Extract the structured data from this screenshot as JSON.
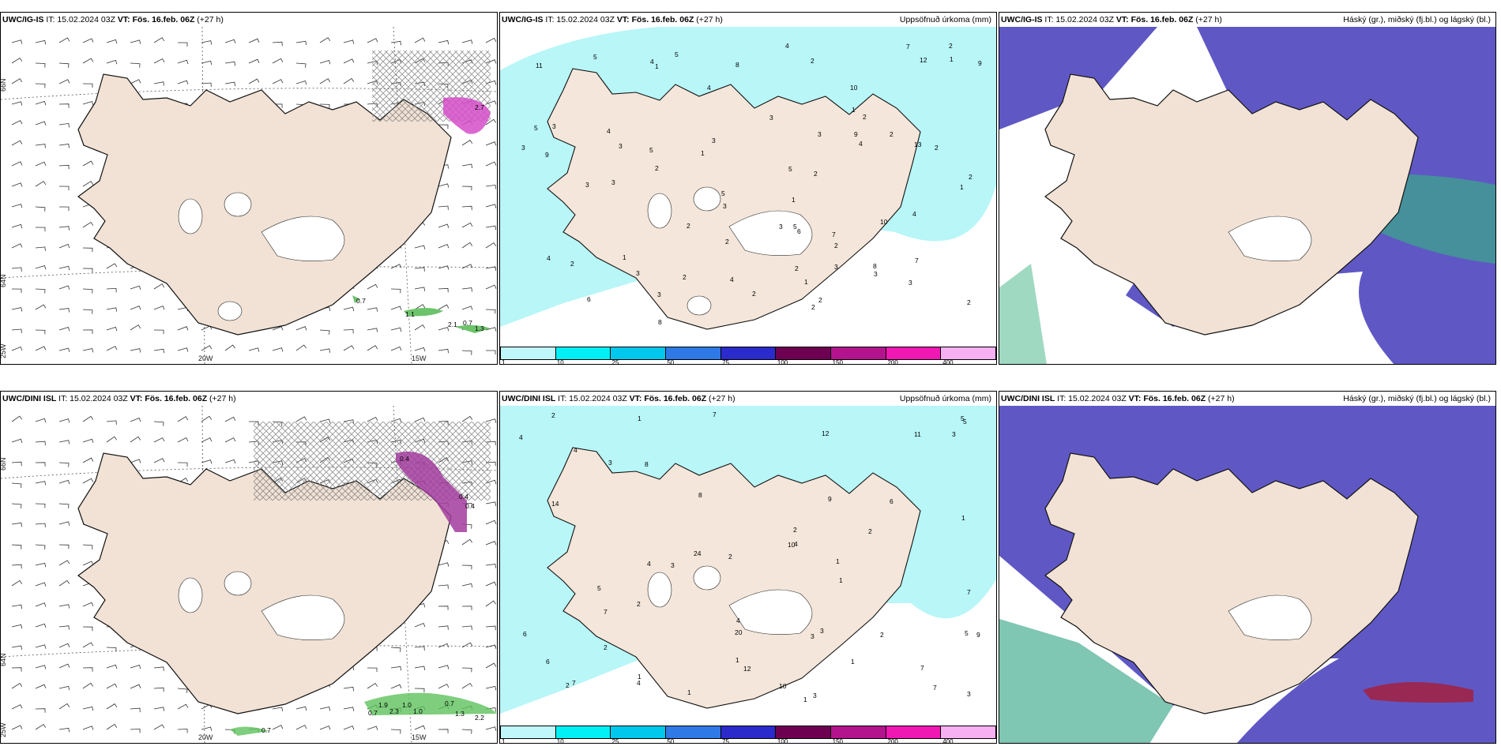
{
  "panels": [
    {
      "model": "UWC/IG-IS",
      "it": "IT: 15.02.2024 03Z",
      "vt": "VT: Fös. 16.feb. 06Z",
      "lead": "(+27 h)",
      "right": ""
    },
    {
      "model": "UWC/IG-IS",
      "it": "IT: 15.02.2024 03Z",
      "vt": "VT: Fös. 16.feb. 06Z",
      "lead": "(+27 h)",
      "right": "Uppsöfnuð úrkoma (mm)"
    },
    {
      "model": "UWC/IG-IS",
      "it": "IT: 15.02.2024 03Z",
      "vt": "VT: Fös. 16.feb. 06Z",
      "lead": "(+27 h)",
      "right": "Háský (gr.), miðský (fj.bl.) og lágský (bl.)"
    },
    {
      "model": "UWC/DINI ISL",
      "it": "IT: 15.02.2024 03Z",
      "vt": "VT: Fös. 16.feb. 06Z",
      "lead": "(+27 h)",
      "right": ""
    },
    {
      "model": "UWC/DINI ISL",
      "it": "IT: 15.02.2024 03Z",
      "vt": "VT: Fös. 16.feb. 06Z",
      "lead": "(+27 h)",
      "right": "Uppsöfnuð úrkoma (mm)"
    },
    {
      "model": "UWC/DINI ISL",
      "it": "IT: 15.02.2024 03Z",
      "vt": "VT: Fös. 16.feb. 06Z",
      "lead": "(+27 h)",
      "right": "Háský (gr.), miðský (fj.bl.) og lágský (bl.)"
    }
  ],
  "axes": {
    "lat66": "66N",
    "lat64": "64N",
    "lon20": "20W",
    "lon15": "15W",
    "lon25": "25W"
  },
  "legend": {
    "ticks": [
      "1",
      "10",
      "25",
      "50",
      "75",
      "100",
      "150",
      "200",
      "400"
    ],
    "colors": [
      "#bff7fa",
      "#00f0f5",
      "#00c8ec",
      "#2f79e6",
      "#2b2bcc",
      "#6e0052",
      "#b3138d",
      "#f018b3",
      "#f7b0f2"
    ]
  },
  "wind_labels_top": [
    "0.7",
    "1.1",
    "2.1",
    "0.7",
    "1.3",
    "2.7"
  ],
  "wind_labels_bottom": [
    "0.7",
    "2.3",
    "1.0",
    "1.0",
    "0.7",
    "2.2",
    "1.3",
    "1.9",
    "0.4",
    "0.4",
    "0.4",
    "0.7"
  ],
  "precip_labels_top": [
    "2",
    "1",
    "1",
    "4",
    "2",
    "1",
    "1",
    "2",
    "3",
    "3",
    "2",
    "5",
    "5",
    "5",
    "4",
    "7",
    "9",
    "12",
    "10",
    "13",
    "8",
    "6",
    "3",
    "3",
    "2",
    "2",
    "3",
    "3",
    "2",
    "4",
    "2",
    "2",
    "10",
    "2",
    "5",
    "4",
    "4",
    "3",
    "2",
    "7",
    "8",
    "5",
    "9",
    "7",
    "2",
    "4",
    "3",
    "2",
    "1",
    "1",
    "2",
    "3",
    "5",
    "1",
    "11",
    "2",
    "3",
    "3",
    "8",
    "4",
    "3",
    "2",
    "9",
    "3",
    "4",
    "6",
    "5",
    "2",
    "3",
    "1",
    "2",
    "3"
  ],
  "precip_labels_bottom": [
    "1",
    "1",
    "1",
    "1",
    "1",
    "4",
    "4",
    "7",
    "7",
    "8",
    "11",
    "12",
    "24",
    "20",
    "12",
    "10",
    "14",
    "4",
    "3",
    "4",
    "3",
    "5",
    "2",
    "2",
    "6",
    "5",
    "6",
    "7",
    "2",
    "1",
    "2",
    "3",
    "4",
    "3",
    "2",
    "1",
    "5",
    "6",
    "9",
    "7",
    "4",
    "2",
    "9",
    "7",
    "8",
    "3",
    "7",
    "10",
    "3",
    "1",
    "5",
    "1",
    "3",
    "2",
    "2"
  ]
}
